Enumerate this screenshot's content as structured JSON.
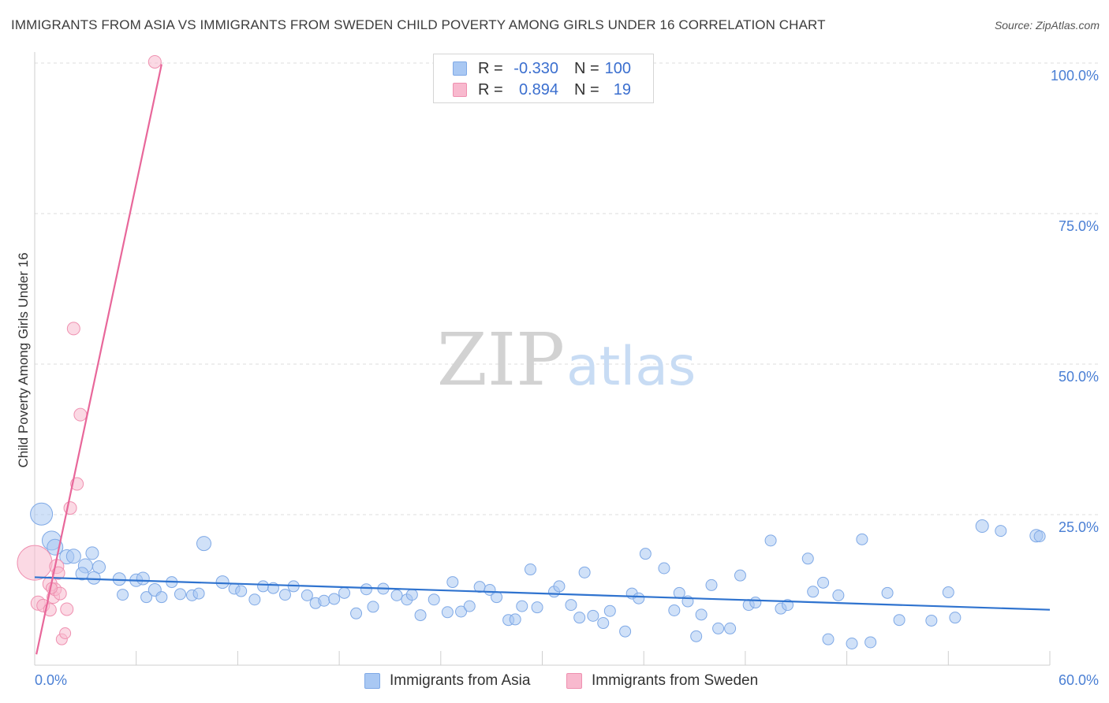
{
  "title": "IMMIGRANTS FROM ASIA VS IMMIGRANTS FROM SWEDEN CHILD POVERTY AMONG GIRLS UNDER 16 CORRELATION CHART",
  "source": "Source: ZipAtlas.com",
  "watermark": {
    "zip": "ZIP",
    "atlas": "atlas"
  },
  "colors": {
    "asia_fill": "#a9c8f3",
    "asia_stroke": "#7fa9e6",
    "asia_line": "#2f73cf",
    "sweden_fill": "#f8b9ce",
    "sweden_stroke": "#ef90b0",
    "sweden_line": "#e8679a",
    "tick_label": "#4a7fd4",
    "grid": "#dcdcdc"
  },
  "legend": {
    "rows": [
      {
        "r_label": "R =",
        "r_value": "-0.330",
        "n_label": "N =",
        "n_value": "100"
      },
      {
        "r_label": "R =",
        "r_value": "0.894",
        "n_label": "N =",
        "n_value": "19"
      }
    ]
  },
  "chart_data": {
    "type": "scatter",
    "title": "IMMIGRANTS FROM ASIA VS IMMIGRANTS FROM SWEDEN CHILD POVERTY AMONG GIRLS UNDER 16 CORRELATION CHART",
    "xlabel": "",
    "ylabel": "Child Poverty Among Girls Under 16",
    "xlim": [
      0,
      60
    ],
    "ylim": [
      0,
      100
    ],
    "x_tick_labels": [
      "0.0%",
      "60.0%"
    ],
    "y_ticks": [
      25,
      50,
      75,
      100
    ],
    "y_tick_labels": [
      "25.0%",
      "50.0%",
      "75.0%",
      "100.0%"
    ],
    "legend_position": "top-center",
    "grid": true,
    "series": [
      {
        "name": "Immigrants from Asia",
        "r": -0.33,
        "n": 100,
        "trend": {
          "x": [
            0,
            60
          ],
          "y": [
            14.6,
            9.2
          ]
        },
        "points": [
          [
            0.4,
            25.1,
            14
          ],
          [
            1.0,
            20.7,
            12
          ],
          [
            1.2,
            19.6,
            10
          ],
          [
            1.9,
            18.0,
            9
          ],
          [
            2.3,
            18.1,
            9
          ],
          [
            3.4,
            18.6,
            8
          ],
          [
            3.0,
            16.5,
            9
          ],
          [
            3.8,
            16.3,
            8
          ],
          [
            2.8,
            15.2,
            8
          ],
          [
            3.5,
            14.5,
            8
          ],
          [
            5.0,
            14.3,
            8
          ],
          [
            5.2,
            11.7,
            7
          ],
          [
            6.0,
            14.1,
            8
          ],
          [
            6.4,
            14.4,
            8
          ],
          [
            6.6,
            11.3,
            7
          ],
          [
            7.1,
            12.5,
            8
          ],
          [
            7.5,
            11.3,
            7
          ],
          [
            8.1,
            13.8,
            7
          ],
          [
            8.6,
            11.8,
            7
          ],
          [
            9.3,
            11.6,
            7
          ],
          [
            9.7,
            11.9,
            7
          ],
          [
            10.0,
            20.2,
            9
          ],
          [
            11.1,
            13.8,
            8
          ],
          [
            11.8,
            12.7,
            7
          ],
          [
            12.2,
            12.3,
            7
          ],
          [
            13.0,
            10.9,
            7
          ],
          [
            13.5,
            13.1,
            7
          ],
          [
            14.1,
            12.8,
            7
          ],
          [
            14.8,
            11.7,
            7
          ],
          [
            15.3,
            13.1,
            7
          ],
          [
            16.1,
            11.6,
            7
          ],
          [
            16.6,
            10.3,
            7
          ],
          [
            17.1,
            10.7,
            7
          ],
          [
            17.7,
            11.0,
            7
          ],
          [
            18.3,
            12.0,
            7
          ],
          [
            19.0,
            8.6,
            7
          ],
          [
            19.6,
            12.6,
            7
          ],
          [
            20.0,
            9.7,
            7
          ],
          [
            20.6,
            12.7,
            7
          ],
          [
            21.4,
            11.6,
            7
          ],
          [
            22.0,
            10.9,
            7
          ],
          [
            22.3,
            11.7,
            7
          ],
          [
            22.8,
            8.3,
            7
          ],
          [
            23.6,
            10.9,
            7
          ],
          [
            24.4,
            8.8,
            7
          ],
          [
            24.7,
            13.8,
            7
          ],
          [
            25.2,
            8.9,
            7
          ],
          [
            25.7,
            9.8,
            7
          ],
          [
            26.3,
            13.0,
            7
          ],
          [
            26.9,
            12.5,
            7
          ],
          [
            27.3,
            11.3,
            7
          ],
          [
            28.0,
            7.5,
            7
          ],
          [
            28.4,
            7.6,
            7
          ],
          [
            28.8,
            9.8,
            7
          ],
          [
            29.3,
            15.9,
            7
          ],
          [
            29.7,
            9.6,
            7
          ],
          [
            30.7,
            12.2,
            7
          ],
          [
            31.0,
            13.1,
            7
          ],
          [
            31.7,
            10.0,
            7
          ],
          [
            32.2,
            7.9,
            7
          ],
          [
            32.5,
            15.4,
            7
          ],
          [
            33.0,
            8.2,
            7
          ],
          [
            33.6,
            7.0,
            7
          ],
          [
            34.0,
            9.0,
            7
          ],
          [
            34.9,
            5.6,
            7
          ],
          [
            35.3,
            11.9,
            7
          ],
          [
            35.7,
            11.1,
            7
          ],
          [
            36.1,
            18.5,
            7
          ],
          [
            37.2,
            16.1,
            7
          ],
          [
            37.8,
            9.1,
            7
          ],
          [
            38.1,
            12.0,
            7
          ],
          [
            38.6,
            10.6,
            7
          ],
          [
            39.1,
            4.8,
            7
          ],
          [
            39.4,
            8.4,
            7
          ],
          [
            40.0,
            13.3,
            7
          ],
          [
            40.4,
            6.1,
            7
          ],
          [
            41.1,
            6.1,
            7
          ],
          [
            41.7,
            14.9,
            7
          ],
          [
            42.2,
            10.0,
            7
          ],
          [
            42.6,
            10.4,
            7
          ],
          [
            43.5,
            20.7,
            7
          ],
          [
            44.1,
            9.4,
            7
          ],
          [
            44.5,
            10.0,
            7
          ],
          [
            45.7,
            17.7,
            7
          ],
          [
            46.0,
            12.2,
            7
          ],
          [
            46.6,
            13.7,
            7
          ],
          [
            46.9,
            4.3,
            7
          ],
          [
            47.5,
            11.6,
            7
          ],
          [
            48.3,
            3.6,
            7
          ],
          [
            48.9,
            20.9,
            7
          ],
          [
            49.4,
            3.8,
            7
          ],
          [
            50.4,
            12.0,
            7
          ],
          [
            51.1,
            7.5,
            7
          ],
          [
            53.0,
            7.4,
            7
          ],
          [
            54.0,
            12.1,
            7
          ],
          [
            54.4,
            7.9,
            7
          ],
          [
            56.0,
            23.1,
            8
          ],
          [
            57.1,
            22.3,
            7
          ],
          [
            59.2,
            21.5,
            8
          ],
          [
            59.4,
            21.4,
            7
          ]
        ]
      },
      {
        "name": "Immigrants from Sweden",
        "r": 0.894,
        "n": 19,
        "trend": {
          "x": [
            0.1,
            7.5
          ],
          "y": [
            1.8,
            99.8
          ]
        },
        "points": [
          [
            0.0,
            17.0,
            22
          ],
          [
            0.2,
            10.3,
            9
          ],
          [
            0.5,
            9.9,
            8
          ],
          [
            0.9,
            9.2,
            8
          ],
          [
            0.9,
            13.5,
            9
          ],
          [
            1.1,
            11.3,
            8
          ],
          [
            1.2,
            12.6,
            8
          ],
          [
            1.3,
            16.4,
            9
          ],
          [
            1.4,
            15.3,
            8
          ],
          [
            1.5,
            11.9,
            8
          ],
          [
            1.6,
            4.3,
            7
          ],
          [
            1.8,
            5.3,
            7
          ],
          [
            1.9,
            9.3,
            8
          ],
          [
            2.1,
            26.1,
            8
          ],
          [
            2.3,
            55.9,
            8
          ],
          [
            2.7,
            41.6,
            8
          ],
          [
            2.5,
            30.1,
            8
          ],
          [
            7.1,
            100.2,
            8
          ],
          [
            1.0,
            12.8,
            7
          ]
        ]
      }
    ]
  },
  "bottom_legend": [
    "Immigrants from Asia",
    "Immigrants from Sweden"
  ]
}
